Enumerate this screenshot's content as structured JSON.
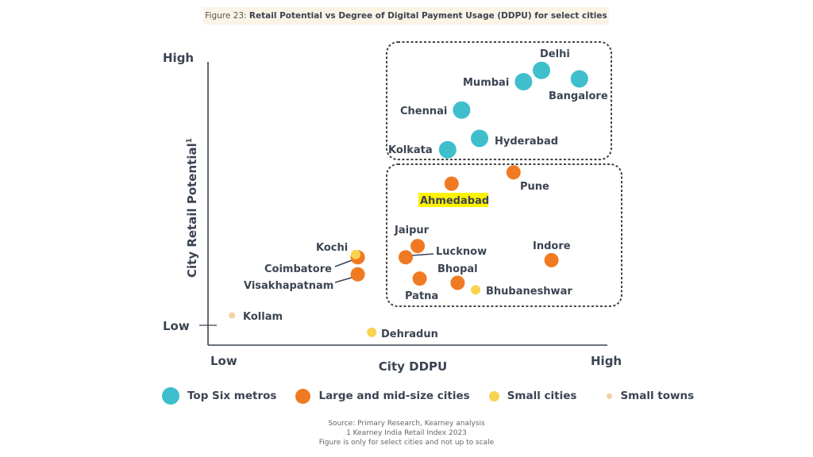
{
  "figure": {
    "prefix": "Figure 23: ",
    "title": "Retail Potential vs Degree of Digital Payment Usage (DDPU) for select cities"
  },
  "colors": {
    "top_six_metros": "#3fbfcc",
    "large_mid_cities": "#f07a22",
    "small_cities": "#f7d34f",
    "small_towns": "#f5cfa4",
    "highlight": "#fff200",
    "axis": "#3b4452",
    "box_border": "#444444"
  },
  "chart_data": {
    "type": "scatter",
    "title": "Retail Potential vs Degree of Digital Payment Usage (DDPU) for select cities",
    "xlabel": "City DDPU",
    "ylabel": "City Retail Potential",
    "ylabel_superscript": "1",
    "x_ticks": {
      "low": "Low",
      "high": "High"
    },
    "y_ticks": {
      "low": "Low",
      "high": "High"
    },
    "xlim": [
      0,
      10
    ],
    "ylim": [
      0,
      10
    ],
    "grid": false,
    "legend_position": "bottom",
    "series": [
      {
        "name": "Top Six metros",
        "key": "top_six_metros",
        "points": [
          {
            "city": "Delhi",
            "x": 8.35,
            "y": 9.7
          },
          {
            "city": "Mumbai",
            "x": 7.9,
            "y": 9.3
          },
          {
            "city": "Bangalore",
            "x": 9.3,
            "y": 9.4
          },
          {
            "city": "Chennai",
            "x": 6.35,
            "y": 8.3
          },
          {
            "city": "Hyderabad",
            "x": 6.8,
            "y": 7.3
          },
          {
            "city": "Kolkata",
            "x": 6.0,
            "y": 6.9
          }
        ]
      },
      {
        "name": "Large and mid-size cities",
        "key": "large_mid_cities",
        "points": [
          {
            "city": "Pune",
            "x": 7.65,
            "y": 6.1
          },
          {
            "city": "Ahmedabad",
            "x": 6.1,
            "y": 5.7,
            "highlighted": true
          },
          {
            "city": "Jaipur",
            "x": 5.25,
            "y": 3.5
          },
          {
            "city": "Lucknow",
            "x": 4.95,
            "y": 3.1
          },
          {
            "city": "Indore",
            "x": 8.6,
            "y": 3.0
          },
          {
            "city": "Patna",
            "x": 5.3,
            "y": 2.35
          },
          {
            "city": "Bhopal",
            "x": 6.25,
            "y": 2.2
          },
          {
            "city": "Coimbatore",
            "x": 3.75,
            "y": 3.1
          },
          {
            "city": "Visakhapatnam",
            "x": 3.75,
            "y": 2.5
          }
        ]
      },
      {
        "name": "Small cities",
        "key": "small_cities",
        "points": [
          {
            "city": "Kochi",
            "x": 3.7,
            "y": 3.2
          },
          {
            "city": "Bhubaneshwar",
            "x": 6.7,
            "y": 1.95
          },
          {
            "city": "Dehradun",
            "x": 4.1,
            "y": 0.45
          }
        ]
      },
      {
        "name": "Small towns",
        "key": "small_towns",
        "points": [
          {
            "city": "Kollam",
            "x": 0.6,
            "y": 1.05
          }
        ]
      }
    ]
  },
  "legend": [
    {
      "label": "Top Six metros",
      "key": "top_six_metros"
    },
    {
      "label": "Large and mid-size cities",
      "key": "large_mid_cities"
    },
    {
      "label": "Small cities",
      "key": "small_cities"
    },
    {
      "label": "Small towns",
      "key": "small_towns"
    }
  ],
  "source": {
    "line1": "Source: Primary Research, Kearney analysis",
    "line2": "1 Kearney India Retail Index 2023",
    "line3": "Figure is only for select cities and not up to scale"
  }
}
